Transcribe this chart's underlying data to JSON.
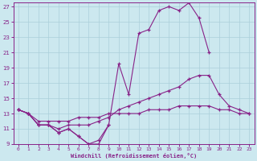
{
  "xlabel": "Windchill (Refroidissement éolien,°C)",
  "background_color": "#cce8ef",
  "grid_color": "#aacfda",
  "line_color": "#882288",
  "xlim_min": -0.5,
  "xlim_max": 23.5,
  "ylim_min": 9,
  "ylim_max": 27.5,
  "xticks": [
    0,
    1,
    2,
    3,
    4,
    5,
    6,
    7,
    8,
    9,
    10,
    11,
    12,
    13,
    14,
    15,
    16,
    17,
    18,
    19,
    20,
    21,
    22,
    23
  ],
  "yticks": [
    9,
    11,
    13,
    15,
    17,
    19,
    21,
    23,
    25,
    27
  ],
  "curve1_x": [
    0,
    1,
    2,
    3,
    4,
    5,
    6,
    7,
    8,
    9,
    10,
    11,
    12,
    13,
    14,
    15,
    16,
    17,
    18,
    19
  ],
  "curve1_y": [
    13.5,
    13.0,
    11.5,
    11.5,
    10.5,
    11.0,
    10.0,
    9.0,
    9.0,
    11.5,
    19.5,
    15.5,
    23.5,
    24.0,
    26.5,
    27.0,
    26.5,
    27.5,
    25.5,
    21.0
  ],
  "curve2_x": [
    0,
    1,
    2,
    3,
    4,
    5,
    6,
    7,
    8,
    9,
    10,
    11,
    12,
    13,
    14,
    15,
    16,
    17,
    18,
    19,
    20,
    21,
    22,
    23
  ],
  "curve2_y": [
    13.5,
    13.0,
    11.5,
    11.5,
    11.0,
    11.5,
    11.5,
    11.5,
    12.0,
    12.5,
    13.5,
    14.0,
    14.5,
    15.0,
    15.5,
    16.0,
    16.5,
    17.5,
    18.0,
    18.0,
    15.5,
    14.0,
    13.5,
    13.0
  ],
  "curve3_x": [
    0,
    1,
    2,
    3,
    4,
    5,
    6,
    7,
    8,
    9,
    10,
    11,
    12,
    13,
    14,
    15,
    16,
    17,
    18,
    19,
    20,
    21,
    22,
    23
  ],
  "curve3_y": [
    13.5,
    13.0,
    12.0,
    12.0,
    12.0,
    12.0,
    12.5,
    12.5,
    12.5,
    13.0,
    13.0,
    13.0,
    13.0,
    13.5,
    13.5,
    13.5,
    14.0,
    14.0,
    14.0,
    14.0,
    13.5,
    13.5,
    13.0,
    13.0
  ],
  "curve4_x": [
    0,
    1,
    2,
    3,
    4,
    5,
    6,
    7,
    8,
    9
  ],
  "curve4_y": [
    13.5,
    13.0,
    11.5,
    11.5,
    10.5,
    11.0,
    10.0,
    9.0,
    9.5,
    11.5
  ]
}
